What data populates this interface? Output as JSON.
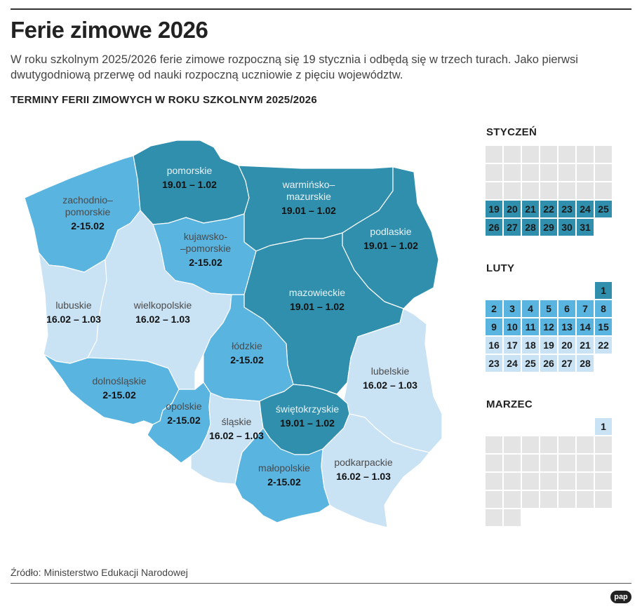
{
  "header": {
    "title": "Ferie zimowe 2026",
    "lead_line1": "W roku szkolnym 2025/2026 ferie zimowe rozpoczną się 19 stycznia i odbędą się w trzech turach. Jako pierwsi",
    "lead_line2": "dwutygodniową przerwę od nauki rozpoczną uczniowie z pięciu województw.",
    "subtitle": "TERMINY FERII ZIMOWYCH W ROKU SZKOLNYM 2025/2026"
  },
  "footer": {
    "source": "Źródło: Ministerstwo Edukacji Narodowej",
    "logo": "pap"
  },
  "colors": {
    "tura1": "#2f8fad",
    "tura2": "#5ab4e0",
    "tura3": "#c9e3f5",
    "empty": "#e4e4e4",
    "text_dark": "#111111",
    "text_grey": "#555555"
  },
  "regions": [
    {
      "id": "zachodniopomorskie",
      "name1": "zachodnio–",
      "name2": "pomorskie",
      "dates": "2-15.02",
      "tura": "tura2"
    },
    {
      "id": "pomorskie",
      "name1": "pomorskie",
      "name2": "",
      "dates": "19.01 – 1.02",
      "tura": "tura1"
    },
    {
      "id": "warminsko-mazurskie",
      "name1": "warmińsko–",
      "name2": "mazurskie",
      "dates": "19.01 – 1.02",
      "tura": "tura1"
    },
    {
      "id": "podlaskie",
      "name1": "podlaskie",
      "name2": "",
      "dates": "19.01 – 1.02",
      "tura": "tura1"
    },
    {
      "id": "kujawsko-pomorskie",
      "name1": "kujawsko-",
      "name2": "–pomorskie",
      "dates": "2-15.02",
      "tura": "tura2"
    },
    {
      "id": "lubuskie",
      "name1": "lubuskie",
      "name2": "",
      "dates": "16.02 – 1.03",
      "tura": "tura3"
    },
    {
      "id": "wielkopolskie",
      "name1": "wielkopolskie",
      "name2": "",
      "dates": "16.02 – 1.03",
      "tura": "tura3"
    },
    {
      "id": "mazowieckie",
      "name1": "mazowieckie",
      "name2": "",
      "dates": "19.01 – 1.02",
      "tura": "tura1"
    },
    {
      "id": "lodzkie",
      "name1": "łódzkie",
      "name2": "",
      "dates": "2-15.02",
      "tura": "tura2"
    },
    {
      "id": "lubelskie",
      "name1": "lubelskie",
      "name2": "",
      "dates": "16.02 – 1.03",
      "tura": "tura3"
    },
    {
      "id": "dolnoslaskie",
      "name1": "dolnośląskie",
      "name2": "",
      "dates": "2-15.02",
      "tura": "tura2"
    },
    {
      "id": "opolskie",
      "name1": "opolskie",
      "name2": "",
      "dates": "2-15.02",
      "tura": "tura2"
    },
    {
      "id": "slaskie",
      "name1": "śląskie",
      "name2": "",
      "dates": "16.02 – 1.03",
      "tura": "tura3"
    },
    {
      "id": "swietokrzyskie",
      "name1": "świętokrzyskie",
      "name2": "",
      "dates": "19.01 – 1.02",
      "tura": "tura1"
    },
    {
      "id": "malopolskie",
      "name1": "małopolskie",
      "name2": "",
      "dates": "2-15.02",
      "tura": "tura2"
    },
    {
      "id": "podkarpackie",
      "name1": "podkarpackie",
      "name2": "",
      "dates": "16.02 – 1.03",
      "tura": "tura3"
    }
  ],
  "calendars": [
    {
      "id": "styczen",
      "month": "STYCZEŃ",
      "days": [
        {
          "day": "",
          "tura": "empty"
        },
        {
          "day": "",
          "tura": "empty"
        },
        {
          "day": "",
          "tura": "empty"
        },
        {
          "day": "",
          "tura": "empty"
        },
        {
          "day": "",
          "tura": "empty"
        },
        {
          "day": "",
          "tura": "empty"
        },
        {
          "day": "",
          "tura": "empty"
        },
        {
          "day": "",
          "tura": "empty"
        },
        {
          "day": "",
          "tura": "empty"
        },
        {
          "day": "",
          "tura": "empty"
        },
        {
          "day": "",
          "tura": "empty"
        },
        {
          "day": "",
          "tura": "empty"
        },
        {
          "day": "",
          "tura": "empty"
        },
        {
          "day": "",
          "tura": "empty"
        },
        {
          "day": "",
          "tura": "empty"
        },
        {
          "day": "",
          "tura": "empty"
        },
        {
          "day": "",
          "tura": "empty"
        },
        {
          "day": "",
          "tura": "empty"
        },
        {
          "day": "",
          "tura": "empty"
        },
        {
          "day": "",
          "tura": "empty"
        },
        {
          "day": "",
          "tura": "empty"
        },
        {
          "day": "19",
          "tura": "tura1"
        },
        {
          "day": "20",
          "tura": "tura1"
        },
        {
          "day": "21",
          "tura": "tura1"
        },
        {
          "day": "22",
          "tura": "tura1"
        },
        {
          "day": "23",
          "tura": "tura1"
        },
        {
          "day": "24",
          "tura": "tura1"
        },
        {
          "day": "25",
          "tura": "tura1"
        },
        {
          "day": "26",
          "tura": "tura1"
        },
        {
          "day": "27",
          "tura": "tura1"
        },
        {
          "day": "28",
          "tura": "tura1"
        },
        {
          "day": "29",
          "tura": "tura1"
        },
        {
          "day": "30",
          "tura": "tura1"
        },
        {
          "day": "31",
          "tura": "tura1"
        },
        {
          "day": "",
          "tura": "none"
        }
      ]
    },
    {
      "id": "luty",
      "month": "LUTY",
      "days": [
        {
          "day": "",
          "tura": "none"
        },
        {
          "day": "",
          "tura": "none"
        },
        {
          "day": "",
          "tura": "none"
        },
        {
          "day": "",
          "tura": "none"
        },
        {
          "day": "",
          "tura": "none"
        },
        {
          "day": "",
          "tura": "none"
        },
        {
          "day": "1",
          "tura": "tura1"
        },
        {
          "day": "2",
          "tura": "tura2"
        },
        {
          "day": "3",
          "tura": "tura2"
        },
        {
          "day": "4",
          "tura": "tura2"
        },
        {
          "day": "5",
          "tura": "tura2"
        },
        {
          "day": "6",
          "tura": "tura2"
        },
        {
          "day": "7",
          "tura": "tura2"
        },
        {
          "day": "8",
          "tura": "tura2"
        },
        {
          "day": "9",
          "tura": "tura2"
        },
        {
          "day": "10",
          "tura": "tura2"
        },
        {
          "day": "11",
          "tura": "tura2"
        },
        {
          "day": "12",
          "tura": "tura2"
        },
        {
          "day": "13",
          "tura": "tura2"
        },
        {
          "day": "14",
          "tura": "tura2"
        },
        {
          "day": "15",
          "tura": "tura2"
        },
        {
          "day": "16",
          "tura": "tura3"
        },
        {
          "day": "17",
          "tura": "tura3"
        },
        {
          "day": "18",
          "tura": "tura3"
        },
        {
          "day": "19",
          "tura": "tura3"
        },
        {
          "day": "20",
          "tura": "tura3"
        },
        {
          "day": "21",
          "tura": "tura3"
        },
        {
          "day": "22",
          "tura": "tura3"
        },
        {
          "day": "23",
          "tura": "tura3"
        },
        {
          "day": "24",
          "tura": "tura3"
        },
        {
          "day": "25",
          "tura": "tura3"
        },
        {
          "day": "26",
          "tura": "tura3"
        },
        {
          "day": "27",
          "tura": "tura3"
        },
        {
          "day": "28",
          "tura": "tura3"
        },
        {
          "day": "",
          "tura": "none"
        }
      ]
    },
    {
      "id": "marzec",
      "month": "MARZEC",
      "days": [
        {
          "day": "",
          "tura": "none"
        },
        {
          "day": "",
          "tura": "none"
        },
        {
          "day": "",
          "tura": "none"
        },
        {
          "day": "",
          "tura": "none"
        },
        {
          "day": "",
          "tura": "none"
        },
        {
          "day": "",
          "tura": "none"
        },
        {
          "day": "1",
          "tura": "tura3"
        },
        {
          "day": "",
          "tura": "empty"
        },
        {
          "day": "",
          "tura": "empty"
        },
        {
          "day": "",
          "tura": "empty"
        },
        {
          "day": "",
          "tura": "empty"
        },
        {
          "day": "",
          "tura": "empty"
        },
        {
          "day": "",
          "tura": "empty"
        },
        {
          "day": "",
          "tura": "empty"
        },
        {
          "day": "",
          "tura": "empty"
        },
        {
          "day": "",
          "tura": "empty"
        },
        {
          "day": "",
          "tura": "empty"
        },
        {
          "day": "",
          "tura": "empty"
        },
        {
          "day": "",
          "tura": "empty"
        },
        {
          "day": "",
          "tura": "empty"
        },
        {
          "day": "",
          "tura": "empty"
        },
        {
          "day": "",
          "tura": "empty"
        },
        {
          "day": "",
          "tura": "empty"
        },
        {
          "day": "",
          "tura": "empty"
        },
        {
          "day": "",
          "tura": "empty"
        },
        {
          "day": "",
          "tura": "empty"
        },
        {
          "day": "",
          "tura": "empty"
        },
        {
          "day": "",
          "tura": "empty"
        },
        {
          "day": "",
          "tura": "empty"
        },
        {
          "day": "",
          "tura": "empty"
        },
        {
          "day": "",
          "tura": "empty"
        },
        {
          "day": "",
          "tura": "empty"
        },
        {
          "day": "",
          "tura": "empty"
        },
        {
          "day": "",
          "tura": "empty"
        },
        {
          "day": "",
          "tura": "empty"
        },
        {
          "day": "",
          "tura": "empty"
        },
        {
          "day": "",
          "tura": "empty"
        },
        {
          "day": "",
          "tura": "none"
        },
        {
          "day": "",
          "tura": "none"
        },
        {
          "day": "",
          "tura": "none"
        },
        {
          "day": "",
          "tura": "none"
        },
        {
          "day": "",
          "tura": "none"
        }
      ]
    }
  ]
}
